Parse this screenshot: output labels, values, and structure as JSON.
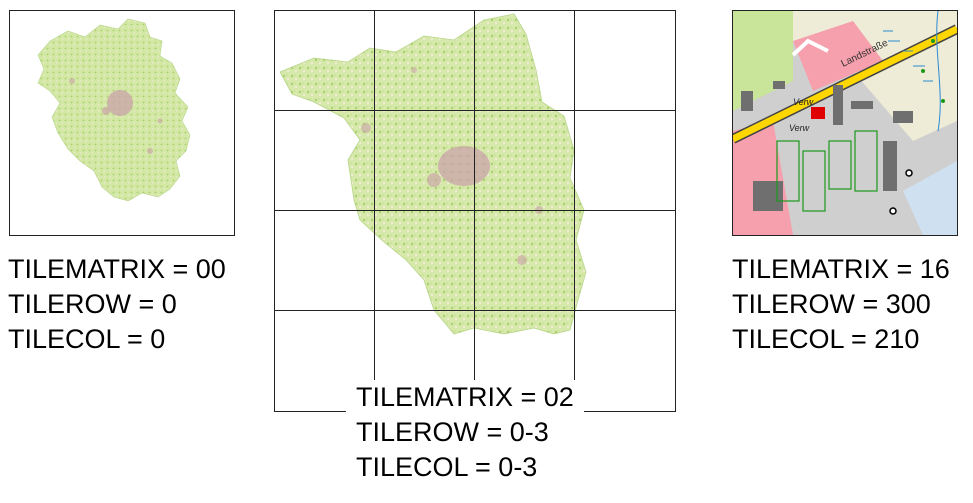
{
  "panels": [
    {
      "name": "zoom-00",
      "lines": [
        "TILEMATRIX = 00",
        "TILEROW = 0",
        "TILECOL = 0"
      ]
    },
    {
      "name": "zoom-02",
      "lines": [
        "TILEMATRIX = 02",
        "TILEROW = 0-3",
        "TILECOL = 0-3"
      ]
    },
    {
      "name": "zoom-16",
      "lines": [
        "TILEMATRIX = 16",
        "TILEROW = 300",
        "TILECOL = 210"
      ]
    }
  ],
  "map_labels": {
    "street": "Landstraße",
    "building_1": "Verw",
    "building_2": "Verw"
  },
  "colors": {
    "forest": "#c9e59a",
    "agri": "#f2efd9",
    "urban": "#c9a3a8",
    "road": "#ffd700",
    "industrial_bg": "#cfcfcf",
    "building": "#6f6f6f",
    "residential": "#f6a0ad",
    "green_area": "#1a9a1a"
  }
}
